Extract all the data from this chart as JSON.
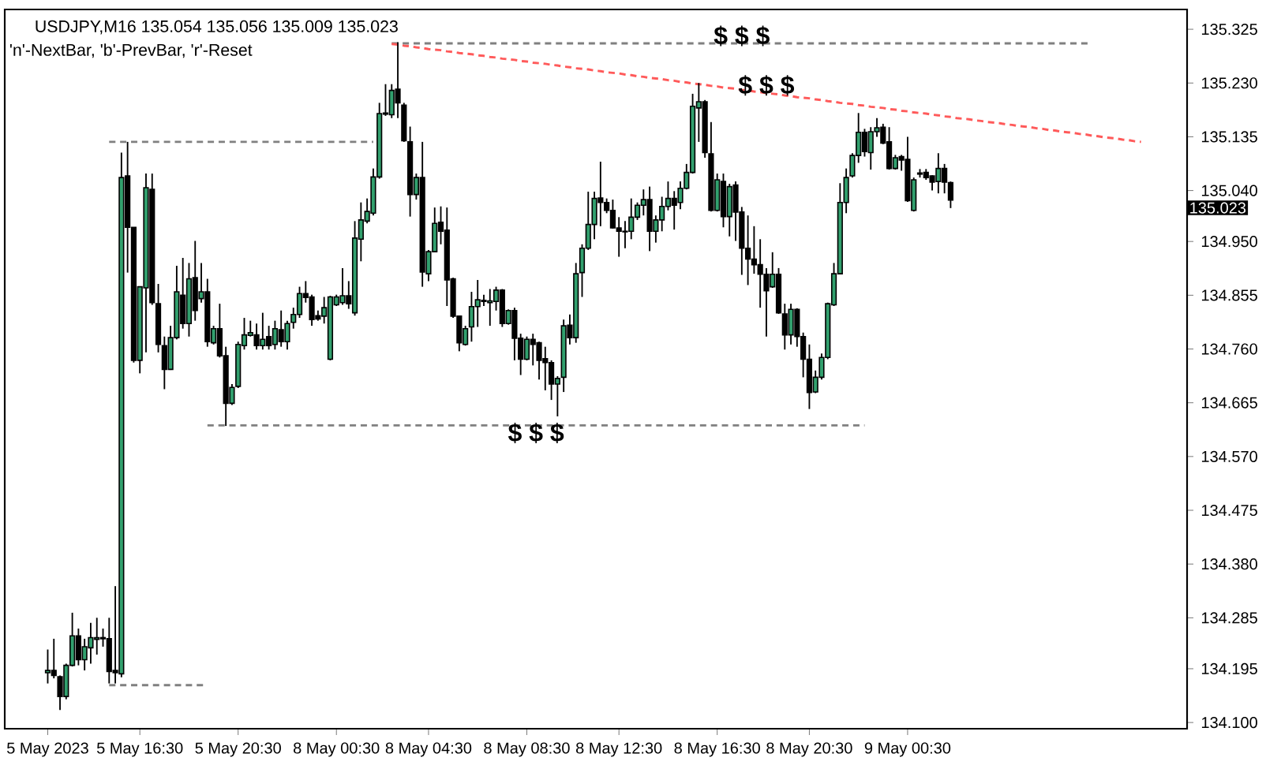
{
  "chart_data": {
    "type": "candlestick",
    "title": "USDJPY,M16 135.054 135.056 135.009 135.023",
    "subtitle": "'n'-NextBar, 'b'-PrevBar, 'r'-Reset",
    "categories": [
      "5 May 2023",
      null,
      null,
      null,
      null,
      null,
      null,
      null,
      null,
      null,
      null,
      null,
      null,
      null,
      null,
      "5 May 16:30",
      null,
      null,
      null,
      null,
      null,
      null,
      null,
      null,
      null,
      null,
      null,
      null,
      null,
      null,
      null,
      "5 May 20:30",
      null,
      null,
      null,
      null,
      null,
      null,
      null,
      null,
      null,
      null,
      null,
      null,
      null,
      null,
      null,
      "8 May 00:30",
      null,
      null,
      null,
      null,
      null,
      null,
      null,
      null,
      null,
      null,
      null,
      null,
      null,
      null,
      "8 May 04:30",
      null,
      null,
      null,
      null,
      null,
      null,
      null,
      null,
      null,
      null,
      null,
      null,
      null,
      null,
      null,
      "8 May 08:30",
      null,
      null,
      null,
      null,
      null,
      null,
      null,
      null,
      null,
      null,
      null,
      null,
      null,
      null,
      "8 May 12:30",
      null,
      null,
      null,
      null,
      null,
      null,
      null,
      null,
      null,
      null,
      null,
      null,
      null,
      null,
      null,
      "8 May 16:30",
      null,
      null,
      null,
      null,
      null,
      null,
      null,
      null,
      null,
      null,
      null,
      null,
      null,
      null,
      "8 May 20:30",
      null,
      null,
      null,
      null,
      null,
      null,
      null,
      null,
      null,
      null,
      null,
      null,
      null,
      null,
      null,
      "9 May 00:30",
      null,
      null,
      null,
      null,
      null,
      null,
      null,
      null,
      null,
      null,
      null,
      null,
      null,
      null,
      null,
      null,
      null,
      null,
      null,
      null,
      null,
      null,
      null,
      null,
      null,
      null,
      null,
      null,
      null,
      null,
      null,
      null,
      null,
      null,
      null,
      null,
      null,
      null,
      null,
      null,
      null,
      null,
      null,
      null,
      null
    ],
    "ohlc": [
      [
        134.188,
        134.229,
        134.169,
        134.192
      ],
      [
        134.192,
        134.248,
        134.178,
        134.183
      ],
      [
        134.181,
        134.183,
        134.122,
        134.146
      ],
      [
        134.146,
        134.204,
        134.141,
        134.201
      ],
      [
        134.201,
        134.294,
        134.199,
        134.253
      ],
      [
        134.253,
        134.266,
        134.201,
        134.211
      ],
      [
        134.211,
        134.248,
        134.192,
        134.234
      ],
      [
        134.232,
        134.276,
        134.204,
        134.25
      ],
      [
        134.247,
        134.285,
        134.22,
        134.25
      ],
      [
        134.248,
        134.266,
        134.234,
        134.25
      ],
      [
        134.248,
        134.285,
        134.169,
        134.19
      ],
      [
        134.192,
        134.341,
        134.169,
        134.188
      ],
      [
        134.186,
        135.107,
        134.18,
        135.063
      ],
      [
        135.066,
        135.126,
        134.895,
        134.975
      ],
      [
        134.975,
        134.975,
        134.736,
        134.74
      ],
      [
        134.74,
        134.87,
        134.717,
        134.87
      ],
      [
        134.868,
        135.07,
        134.754,
        135.045
      ],
      [
        135.042,
        135.07,
        134.838,
        134.842
      ],
      [
        134.84,
        134.875,
        134.754,
        134.768
      ],
      [
        134.766,
        134.782,
        134.689,
        134.724
      ],
      [
        134.724,
        134.801,
        134.723,
        134.78
      ],
      [
        134.78,
        134.907,
        134.777,
        134.861
      ],
      [
        134.855,
        134.921,
        134.796,
        134.805
      ],
      [
        134.805,
        134.912,
        134.782,
        134.884
      ],
      [
        134.886,
        134.951,
        134.81,
        134.828
      ],
      [
        134.849,
        134.912,
        134.842,
        134.861
      ],
      [
        134.861,
        134.884,
        134.764,
        134.773
      ],
      [
        134.771,
        134.801,
        134.768,
        134.796
      ],
      [
        134.796,
        134.84,
        134.745,
        134.748
      ],
      [
        134.748,
        134.764,
        134.624,
        134.664
      ],
      [
        134.664,
        134.698,
        134.661,
        134.692
      ],
      [
        134.694,
        134.773,
        134.691,
        134.768
      ],
      [
        134.766,
        134.815,
        134.759,
        134.785
      ],
      [
        134.784,
        134.81,
        134.782,
        134.789
      ],
      [
        134.785,
        134.805,
        134.759,
        134.766
      ],
      [
        134.766,
        134.824,
        134.759,
        134.777
      ],
      [
        134.782,
        134.801,
        134.759,
        134.766
      ],
      [
        134.768,
        134.81,
        134.759,
        134.796
      ],
      [
        134.794,
        134.828,
        134.764,
        134.773
      ],
      [
        134.773,
        134.81,
        134.759,
        134.805
      ],
      [
        134.807,
        134.833,
        134.796,
        134.821
      ],
      [
        134.821,
        134.87,
        134.815,
        134.858
      ],
      [
        134.858,
        134.88,
        134.842,
        134.851
      ],
      [
        134.852,
        134.856,
        134.801,
        134.812
      ],
      [
        134.819,
        134.828,
        134.81,
        134.813
      ],
      [
        134.818,
        134.852,
        134.805,
        134.833
      ],
      [
        134.742,
        134.854,
        134.74,
        134.852
      ],
      [
        134.838,
        134.856,
        134.836,
        134.852
      ],
      [
        134.842,
        134.903,
        134.838,
        134.854
      ],
      [
        134.854,
        134.88,
        134.831,
        134.84
      ],
      [
        134.824,
        134.986,
        134.819,
        134.956
      ],
      [
        134.954,
        135.019,
        134.915,
        134.988
      ],
      [
        134.986,
        135.026,
        134.982,
        135.003
      ],
      [
        135.0,
        135.079,
        134.996,
        135.064
      ],
      [
        135.064,
        135.195,
        135.061,
        135.176
      ],
      [
        135.175,
        135.228,
        135.172,
        135.177
      ],
      [
        135.174,
        135.228,
        135.168,
        135.217
      ],
      [
        135.219,
        135.302,
        135.168,
        135.195
      ],
      [
        135.191,
        135.195,
        135.126,
        135.128
      ],
      [
        135.126,
        135.153,
        134.994,
        135.033
      ],
      [
        135.033,
        135.07,
        135.024,
        135.063
      ],
      [
        135.063,
        135.126,
        134.87,
        134.896
      ],
      [
        134.893,
        134.935,
        134.88,
        134.932
      ],
      [
        134.932,
        135.01,
        134.931,
        134.982
      ],
      [
        134.984,
        135.012,
        134.945,
        134.968
      ],
      [
        134.97,
        135.01,
        134.836,
        134.882
      ],
      [
        134.884,
        134.886,
        134.815,
        134.818
      ],
      [
        134.818,
        134.819,
        134.756,
        134.771
      ],
      [
        134.768,
        134.801,
        134.766,
        134.796
      ],
      [
        134.799,
        134.861,
        134.773,
        134.835
      ],
      [
        134.835,
        134.882,
        134.799,
        134.847
      ],
      [
        134.844,
        134.856,
        134.836,
        134.846
      ],
      [
        134.842,
        134.866,
        134.801,
        134.845
      ],
      [
        134.844,
        134.87,
        134.828,
        134.864
      ],
      [
        134.864,
        134.866,
        134.799,
        134.805
      ],
      [
        134.805,
        134.83,
        134.803,
        134.828
      ],
      [
        134.828,
        134.833,
        134.74,
        134.779
      ],
      [
        134.779,
        134.787,
        134.714,
        134.742
      ],
      [
        134.742,
        134.782,
        134.74,
        134.777
      ],
      [
        134.777,
        134.787,
        134.731,
        134.768
      ],
      [
        134.771,
        134.773,
        134.706,
        134.74
      ],
      [
        134.743,
        134.764,
        134.687,
        134.736
      ],
      [
        134.736,
        134.74,
        134.67,
        134.698
      ],
      [
        134.698,
        134.712,
        134.641,
        134.708
      ],
      [
        134.71,
        134.812,
        134.684,
        134.801
      ],
      [
        134.802,
        134.821,
        134.768,
        134.78
      ],
      [
        134.78,
        134.912,
        134.771,
        134.893
      ],
      [
        134.895,
        134.945,
        134.852,
        134.938
      ],
      [
        134.938,
        135.038,
        134.935,
        134.98
      ],
      [
        134.98,
        135.038,
        134.954,
        135.026
      ],
      [
        135.027,
        135.091,
        134.977,
        135.019
      ],
      [
        135.019,
        135.026,
        135.0,
        135.005
      ],
      [
        135.005,
        135.024,
        134.973,
        134.974
      ],
      [
        134.974,
        134.993,
        134.923,
        134.968
      ],
      [
        134.968,
        134.986,
        134.938,
        134.967
      ],
      [
        134.968,
        135.026,
        134.954,
        134.993
      ],
      [
        134.993,
        135.019,
        134.988,
        135.014
      ],
      [
        135.014,
        135.042,
        134.996,
        135.024
      ],
      [
        135.024,
        135.047,
        134.933,
        134.968
      ],
      [
        134.968,
        134.996,
        134.948,
        134.988
      ],
      [
        134.988,
        135.029,
        134.968,
        135.012
      ],
      [
        135.012,
        135.056,
        135.005,
        135.026
      ],
      [
        135.026,
        135.039,
        134.971,
        135.014
      ],
      [
        135.019,
        135.056,
        135.007,
        135.044
      ],
      [
        135.044,
        135.087,
        135.042,
        135.072
      ],
      [
        135.072,
        135.211,
        135.07,
        135.189
      ],
      [
        135.186,
        135.23,
        135.126,
        135.197
      ],
      [
        135.197,
        135.2,
        135.098,
        135.107
      ],
      [
        135.105,
        135.161,
        135.003,
        135.005
      ],
      [
        135.005,
        135.07,
        135.003,
        135.059
      ],
      [
        135.056,
        135.07,
        134.975,
        134.994
      ],
      [
        134.994,
        135.052,
        134.959,
        135.047
      ],
      [
        135.05,
        135.056,
        134.951,
        135.002
      ],
      [
        135.002,
        135.011,
        134.891,
        134.938
      ],
      [
        134.938,
        134.996,
        134.873,
        134.919
      ],
      [
        134.919,
        134.977,
        134.893,
        134.909
      ],
      [
        134.909,
        134.954,
        134.833,
        134.892
      ],
      [
        134.892,
        134.903,
        134.782,
        134.863
      ],
      [
        134.87,
        134.931,
        134.868,
        134.892
      ],
      [
        134.892,
        134.903,
        134.822,
        134.824
      ],
      [
        134.822,
        134.84,
        134.759,
        134.785
      ],
      [
        134.785,
        134.84,
        134.768,
        134.83
      ],
      [
        134.83,
        134.832,
        134.764,
        134.782
      ],
      [
        134.782,
        134.789,
        134.71,
        134.742
      ],
      [
        134.742,
        134.768,
        134.654,
        134.683
      ],
      [
        134.684,
        134.722,
        134.682,
        134.71
      ],
      [
        134.71,
        134.752,
        134.706,
        134.745
      ],
      [
        134.745,
        134.842,
        134.742,
        134.84
      ],
      [
        134.838,
        134.912,
        134.836,
        134.893
      ],
      [
        134.893,
        135.053,
        134.892,
        135.019
      ],
      [
        135.019,
        135.079,
        135.0,
        135.063
      ],
      [
        135.066,
        135.106,
        135.063,
        135.102
      ],
      [
        135.102,
        135.177,
        135.089,
        135.143
      ],
      [
        135.143,
        135.149,
        135.1,
        135.109
      ],
      [
        135.107,
        135.152,
        135.077,
        135.144
      ],
      [
        135.144,
        135.168,
        135.135,
        135.151
      ],
      [
        135.152,
        135.158,
        135.122,
        135.124
      ],
      [
        135.126,
        135.152,
        135.077,
        135.079
      ],
      [
        135.079,
        135.103,
        135.077,
        135.098
      ],
      [
        135.1,
        135.103,
        135.075,
        135.094
      ],
      [
        135.095,
        135.135,
        135.02,
        135.022
      ],
      [
        135.005,
        135.063,
        135.003,
        135.059
      ],
      [
        135.069,
        135.078,
        135.063,
        135.071
      ],
      [
        135.072,
        135.078,
        135.059,
        135.063
      ],
      [
        135.066,
        135.067,
        135.04,
        135.055
      ],
      [
        135.056,
        135.106,
        135.035,
        135.079
      ],
      [
        135.079,
        135.087,
        135.035,
        135.055
      ],
      [
        135.054,
        135.056,
        135.009,
        135.023
      ],
      null,
      null,
      null,
      null,
      null,
      null,
      null,
      null,
      null,
      null,
      null,
      null,
      null,
      null,
      null,
      null,
      null,
      null,
      null,
      null,
      null,
      null,
      null,
      null,
      null,
      null,
      null,
      null,
      null,
      null,
      null,
      null,
      null,
      null,
      null,
      null,
      null,
      null
    ],
    "colors": [
      "#32a06e",
      "#000000",
      "#000000",
      "#32a06e",
      "#32a06e",
      "#000000",
      "#32a06e",
      "#32a06e",
      "#32a06e",
      "#32a06e",
      "#000000",
      "#000000",
      "#32a06e",
      "#000000",
      "#000000",
      "#32a06e",
      "#32a06e",
      "#000000",
      "#000000",
      "#000000",
      "#32a06e",
      "#32a06e",
      "#000000",
      "#32a06e",
      "#000000",
      "#32a06e",
      "#000000",
      "#32a06e",
      "#000000",
      "#000000",
      "#32a06e",
      "#32a06e",
      "#32a06e",
      "#32a06e",
      "#000000",
      "#32a06e",
      "#000000",
      "#32a06e",
      "#000000",
      "#32a06e",
      "#32a06e",
      "#32a06e",
      "#000000",
      "#000000",
      "#000000",
      "#32a06e",
      "#32a06e",
      "#32a06e",
      "#32a06e",
      "#000000",
      "#32a06e",
      "#32a06e",
      "#32a06e",
      "#32a06e",
      "#32a06e",
      "#32a06e",
      "#32a06e",
      "#000000",
      "#000000",
      "#000000",
      "#32a06e",
      "#000000",
      "#32a06e",
      "#32a06e",
      "#000000",
      "#000000",
      "#000000",
      "#000000",
      "#32a06e",
      "#32a06e",
      "#32a06e",
      "#32a06e",
      "#32a06e",
      "#32a06e",
      "#000000",
      "#32a06e",
      "#000000",
      "#000000",
      "#32a06e",
      "#000000",
      "#000000",
      "#000000",
      "#000000",
      "#32a06e",
      "#32a06e",
      "#000000",
      "#32a06e",
      "#32a06e",
      "#32a06e",
      "#32a06e",
      "#000000",
      "#000000",
      "#000000",
      "#000000",
      "#000000",
      "#32a06e",
      "#32a06e",
      "#32a06e",
      "#000000",
      "#32a06e",
      "#32a06e",
      "#32a06e",
      "#000000",
      "#32a06e",
      "#32a06e",
      "#32a06e",
      "#32a06e",
      "#000000",
      "#000000",
      "#32a06e",
      "#000000",
      "#32a06e",
      "#000000",
      "#000000",
      "#000000",
      "#000000",
      "#000000",
      "#000000",
      "#32a06e",
      "#000000",
      "#000000",
      "#32a06e",
      "#000000",
      "#000000",
      "#000000",
      "#32a06e",
      "#32a06e",
      "#32a06e",
      "#32a06e",
      "#32a06e",
      "#32a06e",
      "#32a06e",
      "#32a06e",
      "#000000",
      "#32a06e",
      "#32a06e",
      "#000000",
      "#000000",
      "#32a06e",
      "#000000",
      "#000000",
      "#32a06e",
      "#32a06e",
      "#000000",
      "#000000",
      "#32a06e",
      "#000000",
      "#000000",
      null,
      null,
      null,
      null,
      null,
      null,
      null,
      null,
      null,
      null,
      null,
      null,
      null,
      null,
      null,
      null,
      null,
      null,
      null,
      null,
      null,
      null,
      null,
      null,
      null,
      null,
      null,
      null,
      null,
      null,
      null,
      null,
      null,
      null,
      null,
      null,
      null,
      null
    ],
    "series": [
      {
        "type": "line",
        "color": "#808080",
        "line_style": "dashed",
        "values": [
          null,
          null,
          null,
          null,
          null,
          null,
          null,
          null,
          null,
          null,
          135.126,
          135.126,
          135.126,
          135.126,
          135.126,
          135.126,
          135.126,
          135.126,
          135.126,
          135.126,
          135.126,
          135.126,
          135.126,
          135.126,
          135.126,
          135.126,
          135.126,
          135.126,
          135.126,
          135.126,
          135.126,
          135.126,
          135.126,
          135.126,
          135.126,
          135.126,
          135.126,
          135.126,
          135.126,
          135.126,
          135.126,
          135.126,
          135.126,
          135.126,
          135.126,
          135.126,
          135.126,
          135.126,
          135.126,
          135.126,
          135.126,
          135.126,
          135.126,
          135.126,
          null,
          null,
          null,
          null,
          null,
          null,
          null,
          null,
          null,
          null,
          null,
          null,
          null,
          null,
          null,
          null,
          null,
          null,
          null,
          null,
          null,
          null,
          null,
          null,
          null,
          null,
          null,
          null,
          null,
          null,
          null,
          null,
          null,
          null,
          null,
          null,
          null,
          null,
          null,
          null,
          null,
          null,
          null,
          null,
          null,
          null,
          null,
          null,
          null,
          null,
          null,
          null,
          null,
          null,
          null,
          null,
          null,
          null,
          null,
          null,
          null,
          null,
          null,
          null,
          null,
          null,
          null,
          null,
          null,
          null,
          null,
          null,
          null,
          null,
          null,
          null,
          null,
          null,
          null,
          null,
          null,
          null,
          null,
          null,
          null,
          null,
          null,
          null,
          null,
          null,
          null,
          null,
          null,
          null,
          null,
          null,
          null,
          null,
          null,
          null,
          null,
          null,
          null,
          null,
          null,
          null,
          null,
          null,
          null,
          null,
          null,
          null,
          null,
          null,
          null,
          null,
          null,
          null,
          null,
          null,
          null,
          null,
          null,
          null,
          null,
          null,
          null,
          null,
          null,
          null,
          null,
          null
        ]
      },
      {
        "type": "line",
        "color": "#808080",
        "line_style": "dashed",
        "values": [
          null,
          null,
          null,
          null,
          null,
          null,
          null,
          null,
          null,
          null,
          134.166,
          134.166,
          134.166,
          134.166,
          134.166,
          134.166,
          134.166,
          134.166,
          134.166,
          134.166,
          134.166,
          134.166,
          134.166,
          134.166,
          134.166,
          134.166,
          134.166,
          null,
          null,
          null,
          null,
          null,
          null,
          null,
          null,
          null,
          null,
          null,
          null,
          null,
          null,
          null,
          null,
          null,
          null,
          null,
          null,
          null,
          null,
          null,
          null,
          null,
          null,
          null,
          null,
          null,
          null,
          null,
          null,
          null,
          null,
          null,
          null,
          null,
          null,
          null,
          null,
          null,
          null,
          null,
          null,
          null,
          null,
          null,
          null,
          null,
          null,
          null,
          null,
          null,
          null,
          null,
          null,
          null,
          null,
          null,
          null,
          null,
          null,
          null,
          null,
          null,
          null,
          null,
          null,
          null,
          null,
          null,
          null,
          null,
          null,
          null,
          null,
          null,
          null,
          null,
          null,
          null,
          null,
          null,
          null,
          null,
          null,
          null,
          null,
          null,
          null,
          null,
          null,
          null,
          null,
          null,
          null,
          null,
          null,
          null,
          null,
          null,
          null,
          null,
          null,
          null,
          null,
          null,
          null,
          null,
          null,
          null,
          null,
          null,
          null,
          null,
          null,
          null,
          null,
          null,
          null,
          null,
          null,
          null,
          null,
          null,
          null,
          null,
          null,
          null,
          null,
          null,
          null,
          null,
          null,
          null,
          null,
          null,
          null,
          null,
          null,
          null,
          null,
          null,
          null,
          null,
          null,
          null,
          null,
          null,
          null,
          null,
          null,
          null,
          null,
          null,
          null,
          null,
          null,
          null
        ]
      },
      {
        "type": "line",
        "name": "$ $ $",
        "color": "#808080",
        "line_style": "dashed",
        "values": [
          null,
          null,
          null,
          null,
          null,
          null,
          null,
          null,
          null,
          null,
          null,
          null,
          null,
          null,
          null,
          null,
          null,
          null,
          null,
          null,
          null,
          null,
          null,
          null,
          null,
          null,
          null,
          null,
          null,
          null,
          null,
          null,
          null,
          null,
          null,
          null,
          null,
          null,
          null,
          null,
          null,
          null,
          null,
          null,
          null,
          null,
          null,
          null,
          null,
          null,
          null,
          null,
          null,
          null,
          null,
          null,
          135.3,
          135.3,
          135.3,
          135.3,
          135.3,
          135.3,
          135.3,
          135.3,
          135.3,
          135.3,
          135.3,
          135.3,
          135.3,
          135.3,
          135.3,
          135.3,
          135.3,
          135.3,
          135.3,
          135.3,
          135.3,
          135.3,
          135.3,
          135.3,
          135.3,
          135.3,
          135.3,
          135.3,
          135.3,
          135.3,
          135.3,
          135.3,
          135.3,
          135.3,
          135.3,
          135.3,
          135.3,
          135.3,
          135.3,
          135.3,
          135.3,
          135.3,
          135.3,
          135.3,
          135.3,
          135.3,
          135.3,
          135.3,
          135.3,
          135.3,
          135.3,
          135.3,
          135.3,
          135.3,
          135.3,
          135.3,
          135.3,
          135.3,
          135.3,
          135.3,
          135.3,
          135.3,
          135.3,
          135.3,
          135.3,
          135.3,
          135.3,
          135.3,
          135.3,
          135.3,
          135.3,
          135.3,
          135.3,
          135.3,
          135.3,
          135.3,
          135.3,
          135.3,
          135.3,
          135.3,
          135.3,
          135.3,
          135.3,
          135.3,
          135.3,
          135.3,
          135.3,
          135.3,
          135.3,
          135.3,
          135.3,
          135.3,
          135.3,
          135.3,
          135.3,
          135.3,
          135.3,
          135.3,
          135.3,
          135.3,
          135.3,
          135.3,
          135.3,
          135.3,
          135.3,
          135.3,
          135.3,
          135.3,
          135.3,
          135.3,
          135.3,
          135.3,
          135.3,
          135.3,
          135.3,
          null,
          null,
          null,
          null,
          null,
          null,
          null,
          null,
          null,
          null,
          null,
          null,
          null,
          null,
          null
        ]
      },
      {
        "type": "line",
        "name": "$ $ $",
        "color": "#808080",
        "line_style": "dashed",
        "values": [
          null,
          null,
          null,
          null,
          null,
          null,
          null,
          null,
          null,
          null,
          null,
          null,
          null,
          null,
          null,
          null,
          null,
          null,
          null,
          null,
          null,
          null,
          null,
          null,
          null,
          null,
          134.625,
          134.625,
          134.625,
          134.625,
          134.625,
          134.625,
          134.625,
          134.625,
          134.625,
          134.625,
          134.625,
          134.625,
          134.625,
          134.625,
          134.625,
          134.625,
          134.625,
          134.625,
          134.625,
          134.625,
          134.625,
          134.625,
          134.625,
          134.625,
          134.625,
          134.625,
          134.625,
          134.625,
          134.625,
          134.625,
          134.625,
          134.625,
          134.625,
          134.625,
          134.625,
          134.625,
          134.625,
          134.625,
          134.625,
          134.625,
          134.625,
          134.625,
          134.625,
          134.625,
          134.625,
          134.625,
          134.625,
          134.625,
          134.625,
          134.625,
          134.625,
          134.625,
          134.625,
          134.625,
          134.625,
          134.625,
          134.625,
          134.625,
          134.625,
          134.625,
          134.625,
          134.625,
          134.625,
          134.625,
          134.625,
          134.625,
          134.625,
          134.625,
          134.625,
          134.625,
          134.625,
          134.625,
          134.625,
          134.625,
          134.625,
          134.625,
          134.625,
          134.625,
          134.625,
          134.625,
          134.625,
          134.625,
          134.625,
          134.625,
          134.625,
          134.625,
          134.625,
          134.625,
          134.625,
          134.625,
          134.625,
          134.625,
          134.625,
          134.625,
          134.625,
          134.625,
          134.625,
          134.625,
          134.625,
          134.625,
          134.625,
          134.625,
          134.625,
          134.625,
          134.625,
          134.625,
          134.625,
          134.625,
          null,
          null,
          null,
          null,
          null,
          null,
          null,
          null,
          null,
          null,
          null,
          null,
          null,
          null,
          null,
          null,
          null,
          null,
          null,
          null,
          null,
          null,
          null,
          null,
          null,
          null,
          null,
          null,
          null,
          null,
          null,
          null,
          null,
          null,
          null,
          null,
          null,
          null,
          null,
          null,
          null,
          null,
          null,
          null,
          null,
          null,
          null,
          null,
          null,
          null,
          null,
          null
        ]
      },
      {
        "type": "line",
        "name": "$ $ $",
        "color": "#ff5a5a",
        "line_style": "dashed",
        "values": [
          null,
          null,
          null,
          null,
          null,
          null,
          null,
          null,
          null,
          null,
          null,
          null,
          null,
          null,
          null,
          null,
          null,
          null,
          null,
          null,
          null,
          null,
          null,
          null,
          null,
          null,
          null,
          null,
          null,
          null,
          null,
          null,
          null,
          null,
          null,
          null,
          null,
          null,
          null,
          null,
          null,
          null,
          null,
          null,
          null,
          null,
          null,
          null,
          null,
          null,
          null,
          null,
          null,
          null,
          null,
          null,
          135.299,
          135.298,
          135.296,
          135.295,
          135.293,
          135.292,
          135.29,
          135.289,
          135.288,
          135.286,
          135.285,
          135.283,
          135.282,
          135.281,
          135.279,
          135.278,
          135.276,
          135.275,
          135.273,
          135.272,
          135.271,
          135.269,
          135.268,
          135.266,
          135.265,
          135.264,
          135.262,
          135.261,
          135.259,
          135.258,
          135.256,
          135.255,
          135.254,
          135.252,
          135.251,
          135.249,
          135.248,
          135.247,
          135.245,
          135.244,
          135.242,
          135.241,
          135.239,
          135.238,
          135.237,
          135.235,
          135.234,
          135.232,
          135.231,
          135.229,
          135.228,
          135.227,
          135.225,
          135.224,
          135.222,
          135.221,
          135.22,
          135.218,
          135.217,
          135.215,
          135.214,
          135.212,
          135.211,
          135.21,
          135.208,
          135.207,
          135.205,
          135.204,
          135.203,
          135.201,
          135.2,
          135.198,
          135.197,
          135.195,
          135.194,
          135.193,
          135.191,
          135.19,
          135.188,
          135.187,
          135.186,
          135.184,
          135.183,
          135.181,
          135.18,
          135.178,
          135.177,
          135.176,
          135.174,
          135.173,
          135.171,
          135.17,
          135.168,
          135.167,
          135.166,
          135.164,
          135.163,
          135.161,
          135.16,
          135.159,
          135.157,
          135.156,
          135.154,
          135.153,
          135.152,
          135.15,
          135.149,
          135.147,
          135.146,
          135.144,
          135.143,
          135.142,
          135.14,
          135.139,
          135.137,
          135.136,
          135.134,
          135.133,
          135.132,
          135.13,
          135.129,
          135.127,
          135.126,
          null,
          null,
          null,
          null,
          null,
          null,
          null
        ]
      }
    ],
    "annotations": [
      "135.023"
    ],
    "ylim": [
      134.089,
      135.36
    ],
    "yticks": [
      {
        "value": 134.1,
        "label": "134.100"
      },
      134.195,
      134.285,
      {
        "value": 134.38,
        "label": "134.380"
      },
      134.475,
      {
        "value": 134.57,
        "label": "134.570"
      },
      134.665,
      {
        "value": 134.76,
        "label": "134.760"
      },
      134.855,
      {
        "value": 134.95,
        "label": "134.950"
      },
      {
        "value": 135.04,
        "label": "135.040"
      },
      135.135,
      {
        "value": 135.23,
        "label": "135.230"
      },
      135.325
    ]
  }
}
